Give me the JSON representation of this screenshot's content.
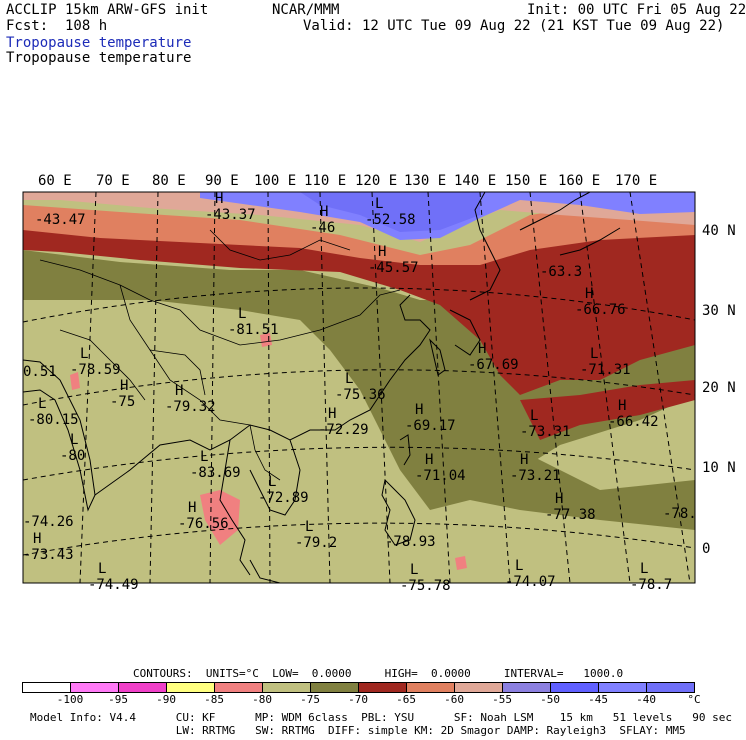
{
  "header": {
    "model": "ACCLIP 15km ARW-GFS init",
    "center": "NCAR/MMM",
    "init": "Init: 00 UTC Fri 05 Aug 22",
    "fcst": "Fcst:  108 h",
    "valid": "Valid: 12 UTC Tue 09 Aug 22 (21 KST Tue 09 Aug 22)",
    "field_title_blue": "Tropopause temperature",
    "field_title_black": "Tropopause temperature"
  },
  "map": {
    "longitude_labels": [
      "60 E",
      "70 E",
      "80 E",
      "90 E",
      "100 E",
      "110 E",
      "120 E",
      "130 E",
      "140 E",
      "150 E",
      "160 E",
      "170 E"
    ],
    "latitude_labels": [
      "40 N",
      "30 N",
      "20 N",
      "10 N",
      "0"
    ],
    "extrema": [
      {
        "mark": "",
        "value": "-43.47"
      },
      {
        "mark": "H",
        "value": "-43.37"
      },
      {
        "mark": "H",
        "value": "-46"
      },
      {
        "mark": "L",
        "value": "-52.58"
      },
      {
        "mark": "H",
        "value": "-45.57"
      },
      {
        "mark": "",
        "value": "-63.3"
      },
      {
        "mark": "H",
        "value": "-66.76"
      },
      {
        "mark": "L",
        "value": "-81.51"
      },
      {
        "mark": "L",
        "value": "-78.59"
      },
      {
        "mark": "",
        "value": "0.51"
      },
      {
        "mark": "H",
        "value": "-79.32"
      },
      {
        "mark": "H",
        "value": "-75"
      },
      {
        "mark": "L",
        "value": "-80.15"
      },
      {
        "mark": "L",
        "value": "-75.36"
      },
      {
        "mark": "H",
        "value": "-67.69"
      },
      {
        "mark": "L",
        "value": "-71.31"
      },
      {
        "mark": "H",
        "value": "-66.42"
      },
      {
        "mark": "L",
        "value": "-73.31"
      },
      {
        "mark": "H",
        "value": "-72.29"
      },
      {
        "mark": "H",
        "value": "-69.17"
      },
      {
        "mark": "L",
        "value": "-80"
      },
      {
        "mark": "L",
        "value": "-83.69"
      },
      {
        "mark": "H",
        "value": "-73.21"
      },
      {
        "mark": "H",
        "value": "-71.04"
      },
      {
        "mark": "L",
        "value": "-72.89"
      },
      {
        "mark": "",
        "value": "-78."
      },
      {
        "mark": "",
        "value": "-74.26"
      },
      {
        "mark": "H",
        "value": "-76.56"
      },
      {
        "mark": "L",
        "value": "-79.2"
      },
      {
        "mark": "",
        "value": "-78.93"
      },
      {
        "mark": "H",
        "value": "-77.38"
      },
      {
        "mark": "H",
        "value": "-73.43"
      },
      {
        "mark": "L",
        "value": "-74.49"
      },
      {
        "mark": "L",
        "value": "-75.78"
      },
      {
        "mark": "L",
        "value": "-74.07"
      },
      {
        "mark": "L",
        "value": "-78.7"
      }
    ]
  },
  "footer": {
    "contours_line": "CONTOURS:  UNITS=°C  LOW=  0.0000     HIGH=  0.0000     INTERVAL=   1000.0",
    "legend_colors": [
      "#ffffff",
      "#ff7af6",
      "#f040c8",
      "#ffff80",
      "#f08080",
      "#c0c080",
      "#808040",
      "#a02820",
      "#e08060",
      "#e0a898",
      "#8c80e0",
      "#6060ff",
      "#8080ff",
      "#7070f8"
    ],
    "legend_ticks": [
      "-100",
      "-95",
      "-90",
      "-85",
      "-80",
      "-75",
      "-70",
      "-65",
      "-60",
      "-55",
      "-50",
      "-45",
      "-40",
      "°C"
    ],
    "model_info_1": "Model Info: V4.4      CU: KF      MP: WDM 6class  PBL: YSU      SF: Noah LSM    15 km   51 levels   90 sec",
    "model_info_2": "                      LW: RRTMG   SW: RRTMG  DIFF: simple KM: 2D Smagor DAMP: Rayleigh3  SFLAY: MM5"
  }
}
